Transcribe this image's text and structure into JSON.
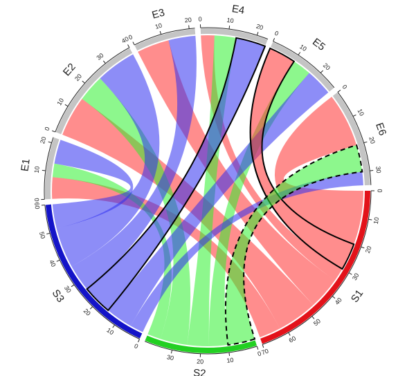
{
  "chart_data": {
    "type": "chord",
    "sectors": [
      {
        "name": "S1",
        "color": "#e3121a",
        "ticks": [
          0,
          10,
          20,
          30,
          40,
          50,
          60,
          70
        ]
      },
      {
        "name": "S2",
        "color": "#22d022",
        "ticks": [
          0,
          10,
          20,
          30
        ]
      },
      {
        "name": "S3",
        "color": "#1414c8",
        "ticks": [
          0,
          10,
          20,
          30,
          40,
          50,
          60
        ]
      },
      {
        "name": "E1",
        "color": "#c4c4c4",
        "ticks": [
          0,
          10,
          20
        ]
      },
      {
        "name": "E2",
        "color": "#c4c4c4",
        "ticks": [
          0,
          10,
          20,
          30,
          40
        ]
      },
      {
        "name": "E3",
        "color": "#c4c4c4",
        "ticks": [
          0,
          10,
          20
        ]
      },
      {
        "name": "E4",
        "color": "#c4c4c4",
        "ticks": [
          0,
          10,
          20
        ]
      },
      {
        "name": "E5",
        "color": "#c4c4c4",
        "ticks": [
          0,
          10,
          20
        ]
      },
      {
        "name": "E6",
        "color": "#c4c4c4",
        "ticks": [
          0,
          10,
          20,
          30
        ]
      }
    ],
    "link_colors": {
      "S1": "#ff3030",
      "S2": "#30f030",
      "S3": "#3030f0"
    },
    "link_opacity": 0.55,
    "links": [
      {
        "from": "S1",
        "to": "E6",
        "value": 20
      },
      {
        "from": "S1",
        "to": "E5",
        "value": 10,
        "border": "solid"
      },
      {
        "from": "S1",
        "to": "E4",
        "value": 5
      },
      {
        "from": "S1",
        "to": "E3",
        "value": 12
      },
      {
        "from": "S1",
        "to": "E2",
        "value": 15
      },
      {
        "from": "S1",
        "to": "E1",
        "value": 8
      },
      {
        "from": "S2",
        "to": "E6",
        "value": 10,
        "border": "dashed"
      },
      {
        "from": "S2",
        "to": "E5",
        "value": 7
      },
      {
        "from": "S2",
        "to": "E4",
        "value": 8
      },
      {
        "from": "S2",
        "to": "E2",
        "value": 10
      },
      {
        "from": "S2",
        "to": "E1",
        "value": 5
      },
      {
        "from": "S3",
        "to": "E6",
        "value": 5
      },
      {
        "from": "S3",
        "to": "E5",
        "value": 10
      },
      {
        "from": "S3",
        "to": "E4",
        "value": 11,
        "border": "solid"
      },
      {
        "from": "S3",
        "to": "E3",
        "value": 10
      },
      {
        "from": "S3",
        "to": "E2",
        "value": 15
      },
      {
        "from": "S3",
        "to": "E1",
        "value": 9
      }
    ]
  }
}
